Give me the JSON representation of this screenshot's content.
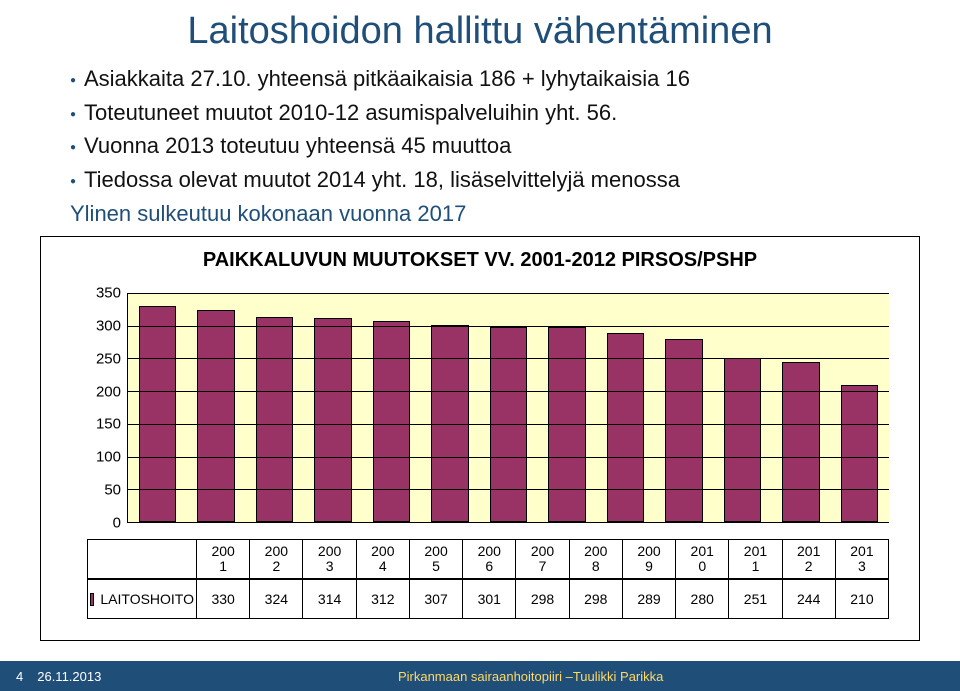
{
  "title": "Laitoshoidon hallittu vähentäminen",
  "bullets": [
    "Asiakkaita 27.10. yhteensä pitkäaikaisia 186 + lyhytaikaisia 16",
    "Toteutuneet muutot 2010-12 asumispalveluihin yht. 56.",
    "Vuonna 2013 toteutuu yhteensä 45 muuttoa",
    "Tiedossa olevat muutot 2014 yht. 18, lisäselvittelyjä menossa"
  ],
  "subline": "Ylinen sulkeutuu kokonaan vuonna 2017",
  "chart": {
    "title": "PAIKKALUVUN MUUTOKSET VV. 2001-2012 PIRSOS/PSHP",
    "title_fontsize": 20,
    "type": "bar",
    "ymin": 0,
    "ymax": 350,
    "ystep": 50,
    "yticks": [
      0,
      50,
      100,
      150,
      200,
      250,
      300,
      350
    ],
    "background_color": "#ffffcc",
    "bar_color": "#993366",
    "grid_color": "#000000",
    "categories_top": [
      "200",
      "200",
      "200",
      "200",
      "200",
      "200",
      "200",
      "200",
      "200",
      "201",
      "201",
      "201",
      "201"
    ],
    "categories_bot": [
      "1",
      "2",
      "3",
      "4",
      "5",
      "6",
      "7",
      "8",
      "9",
      "0",
      "1",
      "2",
      "3"
    ],
    "series_label": "LAITOSHOITO",
    "values": [
      330,
      324,
      314,
      312,
      307,
      301,
      298,
      298,
      289,
      280,
      251,
      244,
      210
    ]
  },
  "footer": {
    "page": "4",
    "date": "26.11.2013",
    "org": "Pirkanmaan sairaanhoitopiiri –Tuulikki Parikka"
  }
}
